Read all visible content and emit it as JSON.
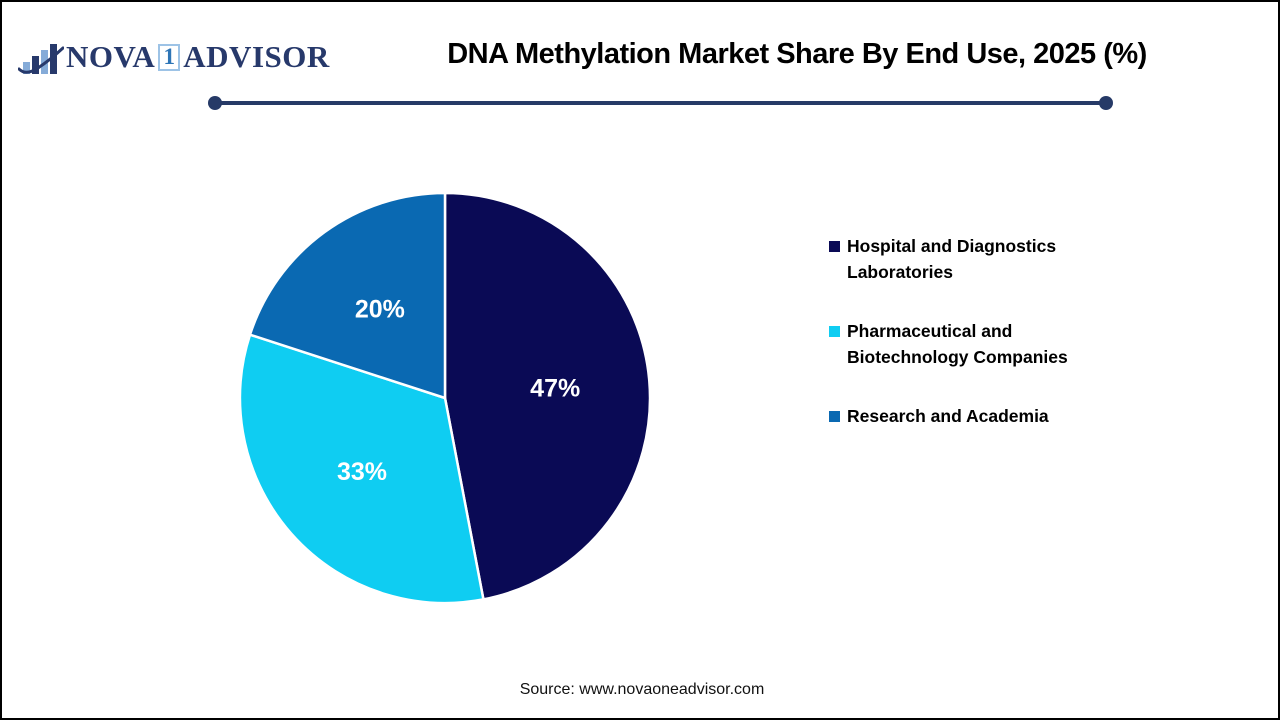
{
  "brand": {
    "icon": "bar-chart-swoosh-icon",
    "part1": "NOVA",
    "part2": "1",
    "part3": "ADVISOR"
  },
  "header": {
    "title": "DNA Methylation Market Share By End Use, 2025 (%)"
  },
  "chart_data": {
    "type": "pie",
    "title": "DNA Methylation Market Share By End Use, 2025 (%)",
    "categories": [
      "Hospital and Diagnostics Laboratories",
      "Pharmaceutical and Biotechnology Companies",
      "Research and Academia"
    ],
    "values": [
      47,
      33,
      20
    ],
    "unit": "%",
    "colors": [
      "#0A0A55",
      "#0FCDF2",
      "#0A69B2"
    ],
    "label_color": "#FFFFFF",
    "start_angle_deg": 0,
    "direction": "clockwise",
    "slice_border_color": "#FFFFFF",
    "legend_position": "right"
  },
  "legend": {
    "items": [
      {
        "label": "Hospital and Diagnostics Laboratories",
        "color": "#0A0A55"
      },
      {
        "label": "Pharmaceutical and Biotechnology Companies",
        "color": "#0FCDF2"
      },
      {
        "label": "Research and Academia",
        "color": "#0A69B2"
      }
    ]
  },
  "footer": {
    "source": "Source: www.novaoneadvisor.com"
  },
  "theme": {
    "divider_color": "#263A67",
    "background": "#FFFFFF",
    "border_color": "#000000",
    "logo_navy": "#27396B",
    "logo_light_blue": "#85ABD8",
    "logo_mid_blue": "#2E75B6"
  }
}
